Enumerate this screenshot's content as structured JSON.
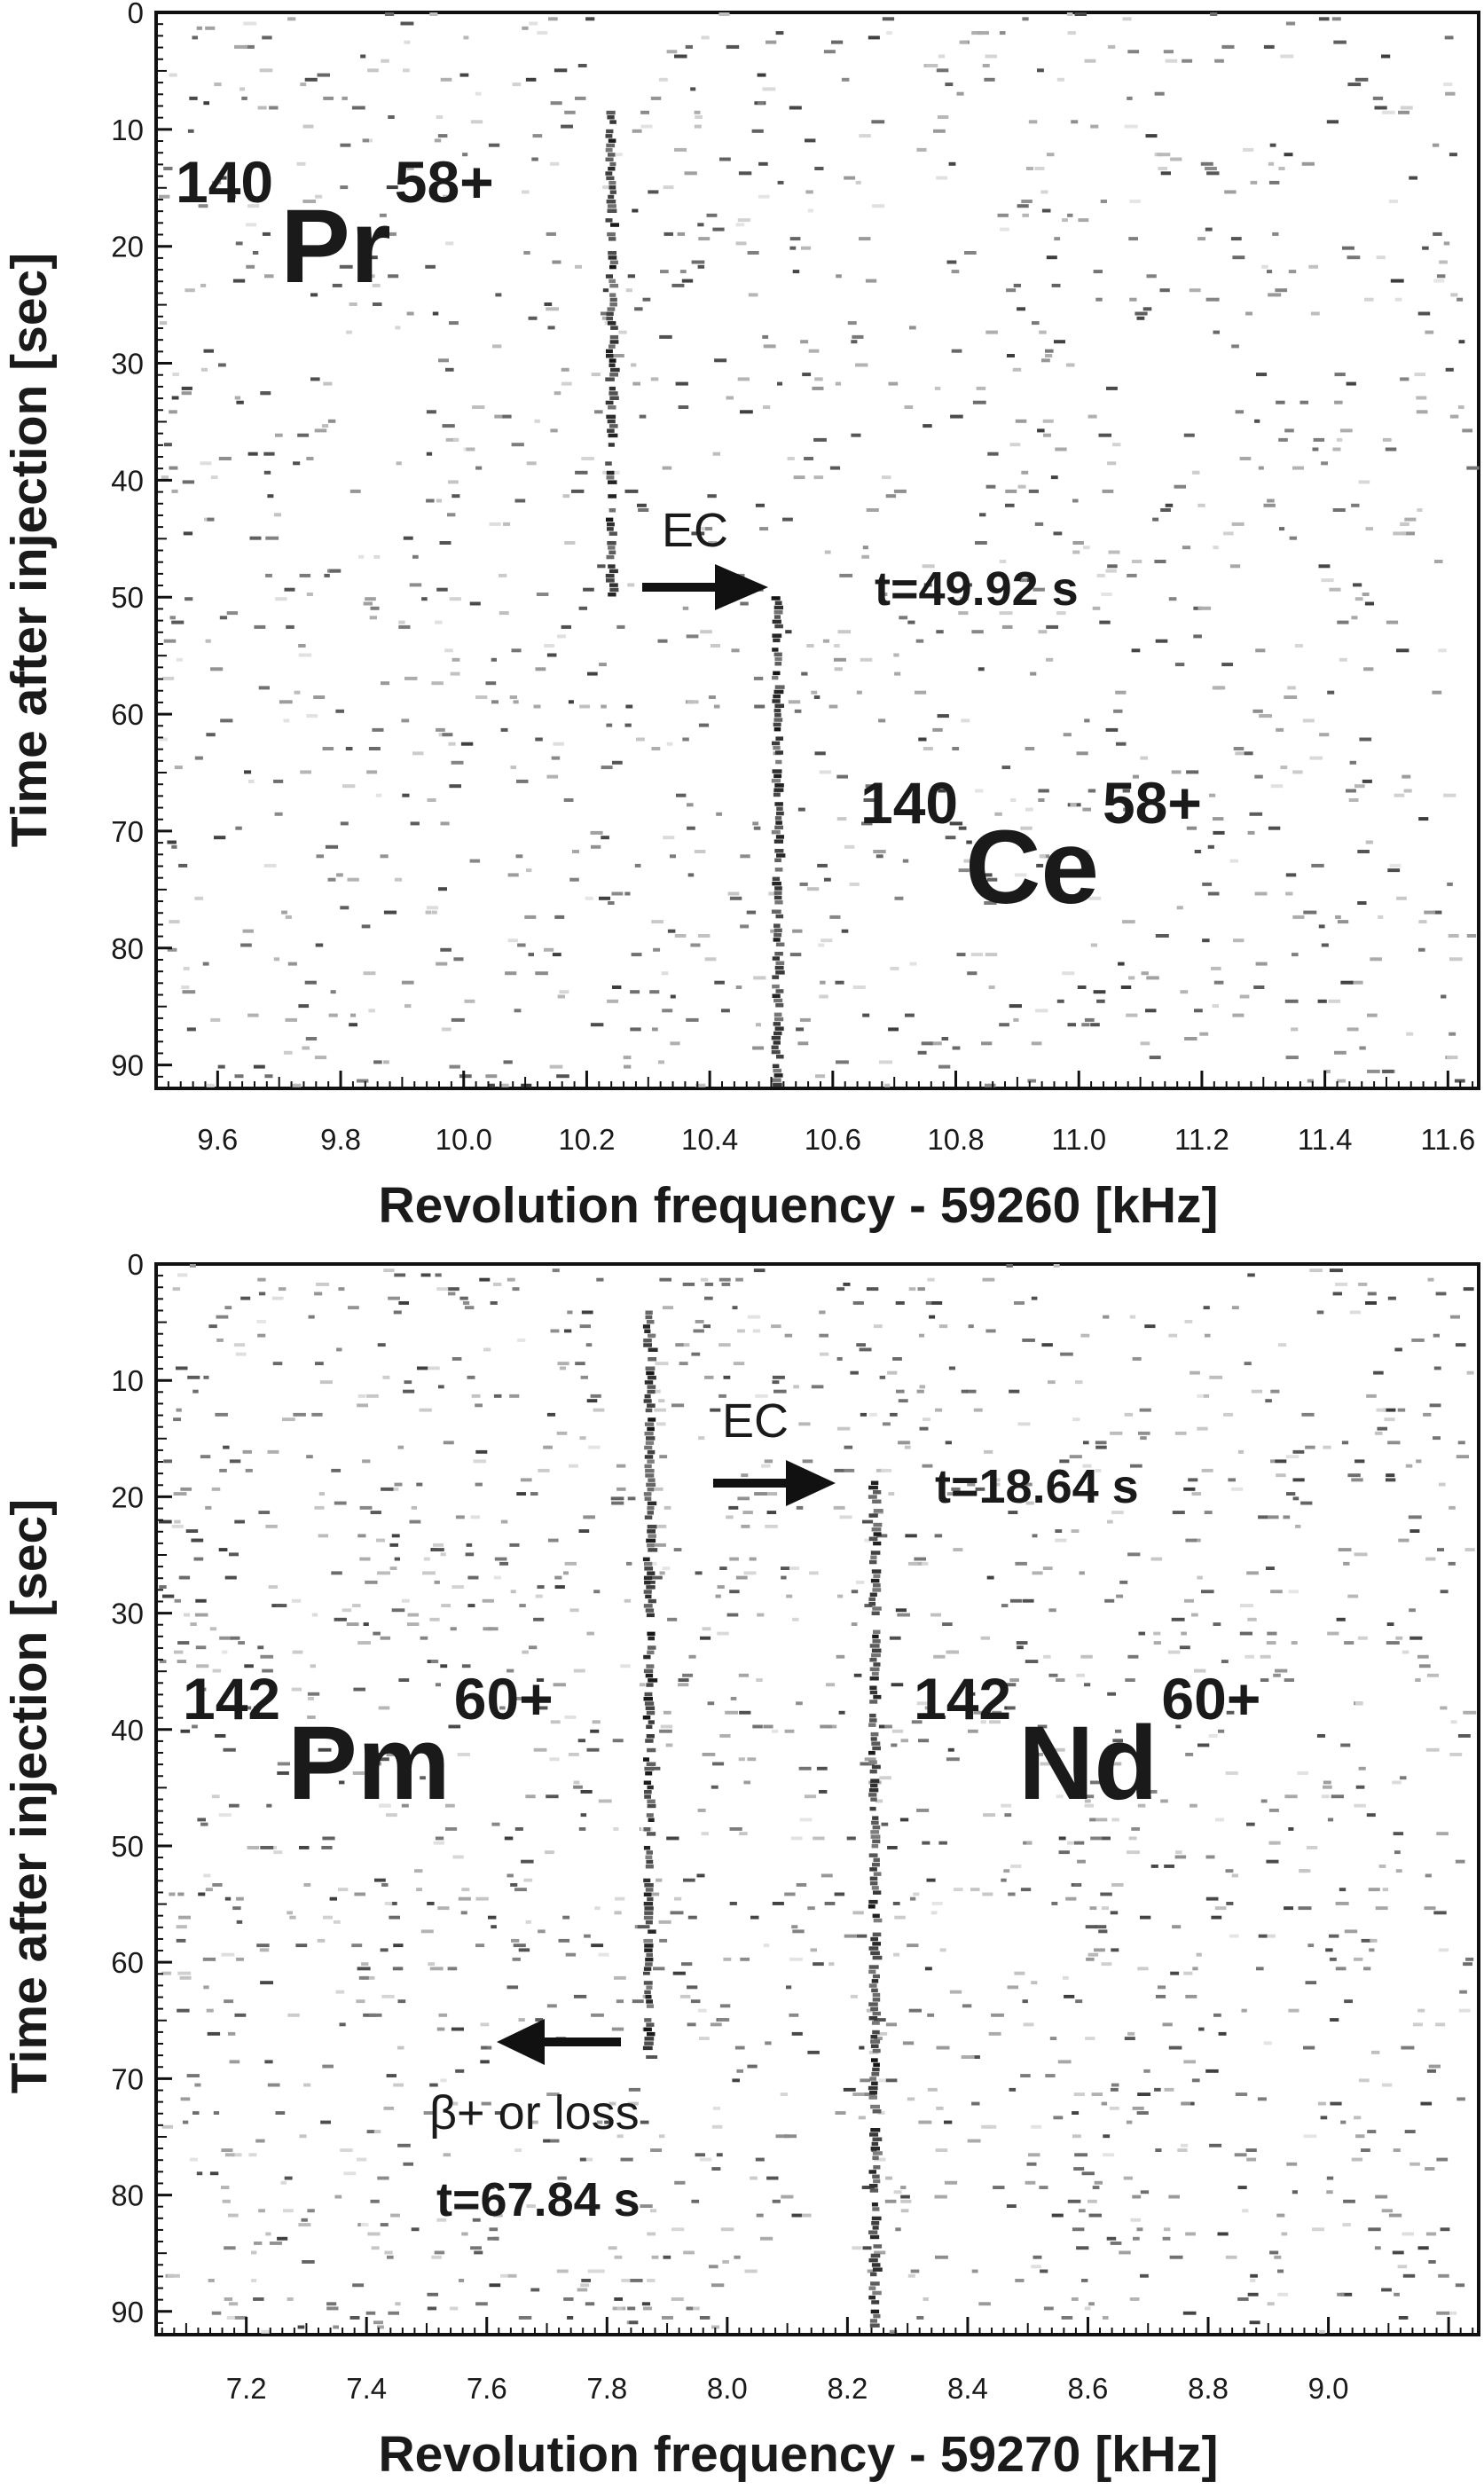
{
  "chart_data": [
    {
      "type": "heatmap",
      "xlabel": "Revolution frequency - 59260 [kHz]",
      "ylabel": "Time after injection [sec]",
      "xlim": [
        9.5,
        11.65
      ],
      "ylim": [
        0,
        92
      ],
      "y_inverted": true,
      "x_ticks": [
        "9.6",
        "9.8",
        "10.0",
        "10.2",
        "10.4",
        "10.6",
        "10.8",
        "11.0",
        "11.2",
        "11.4",
        "11.6"
      ],
      "y_ticks": [
        "0",
        "10",
        "20",
        "30",
        "40",
        "50",
        "60",
        "70",
        "80",
        "90"
      ],
      "traces": [
        {
          "name": "140Pr58+",
          "x": 10.24,
          "t_start": 8,
          "t_end": 49.92
        },
        {
          "name": "140Ce58+",
          "x": 10.51,
          "t_start": 49.92,
          "t_end": 92
        }
      ],
      "ions": [
        {
          "mass": "140",
          "element": "Pr",
          "charge": "58+",
          "x": 9.62,
          "t": 22
        },
        {
          "mass": "140",
          "element": "Ce",
          "charge": "58+",
          "x": 10.82,
          "t": 74
        }
      ],
      "annotations": [
        {
          "text": "EC",
          "x": 10.35,
          "t": 46
        },
        {
          "text": "t=49.92 s",
          "x": 10.63,
          "t": 51
        }
      ],
      "arrows": [
        {
          "x_from": 10.22,
          "x_to": 10.48,
          "t": 49.92
        }
      ],
      "noise_density": 0.45
    },
    {
      "type": "heatmap",
      "xlabel": "Revolution frequency - 59270 [kHz]",
      "ylabel": "Time after injection [sec]",
      "xlim": [
        7.05,
        9.25
      ],
      "ylim": [
        0,
        92
      ],
      "y_inverted": true,
      "x_ticks": [
        "7.2",
        "7.4",
        "7.6",
        "7.8",
        "8.0",
        "8.2",
        "8.4",
        "8.6",
        "8.8",
        "9.0"
      ],
      "y_ticks": [
        "0",
        "10",
        "20",
        "30",
        "40",
        "50",
        "60",
        "70",
        "80",
        "90"
      ],
      "traces": [
        {
          "name": "142Pm60+",
          "x": 7.87,
          "t_start": 4,
          "t_end": 67.84
        },
        {
          "name": "142Nd60+",
          "x": 8.245,
          "t_start": 18.64,
          "t_end": 92
        }
      ],
      "ions": [
        {
          "mass": "142",
          "element": "Pm",
          "charge": "60+",
          "x": 7.1,
          "t": 45
        },
        {
          "mass": "142",
          "element": "Nd",
          "charge": "60+",
          "x": 8.34,
          "t": 45
        }
      ],
      "annotations": [
        {
          "text": "EC",
          "x": 8.08,
          "t": 15
        },
        {
          "text": "t=18.64 s",
          "x": 8.28,
          "t": 20.5
        },
        {
          "text": "β+ or loss",
          "x": 7.47,
          "t": 73
        },
        {
          "text": "t=67.84 s",
          "x": 7.51,
          "t": 80
        }
      ],
      "arrows": [
        {
          "x_from": 7.93,
          "x_to": 8.14,
          "t": 18.5
        },
        {
          "x_from": 7.82,
          "x_to": 7.59,
          "t": 66.2
        }
      ],
      "noise_density": 0.75
    }
  ]
}
